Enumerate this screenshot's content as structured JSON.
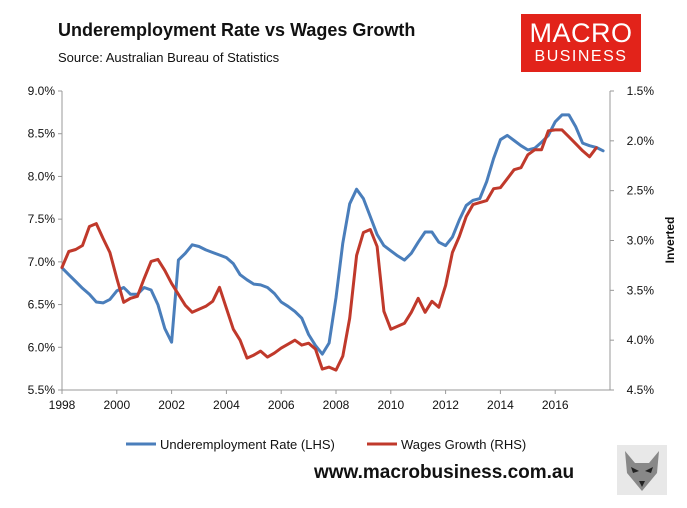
{
  "header": {
    "title": "Underemployment Rate vs Wages Growth",
    "subtitle": "Source: Australian Bureau of Statistics"
  },
  "logo": {
    "line1": "MACRO",
    "line2": "BUSINESS",
    "color": "#e2231a"
  },
  "footer": {
    "url": "www.macrobusiness.com.au"
  },
  "icons": {
    "fox": "fox-head-icon"
  },
  "chart_data": {
    "type": "line",
    "title": "Underemployment Rate vs Wages Growth",
    "subtitle": "Source: Australian Bureau of Statistics",
    "xlabel": "",
    "ylabel_left": "",
    "ylabel_right": "Inverted",
    "xlim": [
      1998,
      2018
    ],
    "x_ticks": [
      "1998",
      "2000",
      "2002",
      "2004",
      "2006",
      "2008",
      "2010",
      "2012",
      "2014",
      "2016"
    ],
    "ylim_left": [
      5.5,
      9.0
    ],
    "y_ticks_left": [
      "5.5%",
      "6.0%",
      "6.5%",
      "7.0%",
      "7.5%",
      "8.0%",
      "8.5%",
      "9.0%"
    ],
    "ylim_right": [
      4.5,
      1.5
    ],
    "right_axis_inverted": true,
    "y_ticks_right": [
      "1.5%",
      "2.0%",
      "2.5%",
      "3.0%",
      "3.5%",
      "4.0%",
      "4.5%"
    ],
    "grid": false,
    "legend_position": "bottom",
    "series": [
      {
        "name": "Underemployment Rate (LHS)",
        "axis": "left",
        "color": "#4a7ebb",
        "points": [
          [
            1998.0,
            6.93
          ],
          [
            1998.25,
            6.85
          ],
          [
            1998.5,
            6.77
          ],
          [
            1998.75,
            6.69
          ],
          [
            1999.0,
            6.62
          ],
          [
            1999.25,
            6.53
          ],
          [
            1999.5,
            6.52
          ],
          [
            1999.75,
            6.56
          ],
          [
            2000.0,
            6.66
          ],
          [
            2000.25,
            6.7
          ],
          [
            2000.5,
            6.62
          ],
          [
            2000.75,
            6.62
          ],
          [
            2001.0,
            6.7
          ],
          [
            2001.25,
            6.67
          ],
          [
            2001.5,
            6.5
          ],
          [
            2001.75,
            6.22
          ],
          [
            2002.0,
            6.06
          ],
          [
            2002.25,
            7.02
          ],
          [
            2002.5,
            7.1
          ],
          [
            2002.75,
            7.2
          ],
          [
            2003.0,
            7.18
          ],
          [
            2003.25,
            7.14
          ],
          [
            2003.5,
            7.11
          ],
          [
            2003.75,
            7.08
          ],
          [
            2004.0,
            7.05
          ],
          [
            2004.25,
            6.98
          ],
          [
            2004.5,
            6.85
          ],
          [
            2004.75,
            6.79
          ],
          [
            2005.0,
            6.74
          ],
          [
            2005.25,
            6.73
          ],
          [
            2005.5,
            6.7
          ],
          [
            2005.75,
            6.63
          ],
          [
            2006.0,
            6.53
          ],
          [
            2006.25,
            6.48
          ],
          [
            2006.5,
            6.42
          ],
          [
            2006.75,
            6.34
          ],
          [
            2007.0,
            6.15
          ],
          [
            2007.25,
            6.02
          ],
          [
            2007.5,
            5.92
          ],
          [
            2007.75,
            6.05
          ],
          [
            2008.0,
            6.58
          ],
          [
            2008.25,
            7.22
          ],
          [
            2008.5,
            7.68
          ],
          [
            2008.75,
            7.85
          ],
          [
            2009.0,
            7.74
          ],
          [
            2009.25,
            7.53
          ],
          [
            2009.5,
            7.32
          ],
          [
            2009.75,
            7.19
          ],
          [
            2010.0,
            7.13
          ],
          [
            2010.25,
            7.07
          ],
          [
            2010.5,
            7.02
          ],
          [
            2010.75,
            7.1
          ],
          [
            2011.0,
            7.23
          ],
          [
            2011.25,
            7.35
          ],
          [
            2011.5,
            7.35
          ],
          [
            2011.75,
            7.23
          ],
          [
            2012.0,
            7.19
          ],
          [
            2012.25,
            7.29
          ],
          [
            2012.5,
            7.49
          ],
          [
            2012.75,
            7.66
          ],
          [
            2013.0,
            7.72
          ],
          [
            2013.25,
            7.74
          ],
          [
            2013.5,
            7.94
          ],
          [
            2013.75,
            8.21
          ],
          [
            2014.0,
            8.43
          ],
          [
            2014.25,
            8.48
          ],
          [
            2014.5,
            8.42
          ],
          [
            2014.75,
            8.36
          ],
          [
            2015.0,
            8.31
          ],
          [
            2015.25,
            8.33
          ],
          [
            2015.5,
            8.4
          ],
          [
            2015.75,
            8.48
          ],
          [
            2016.0,
            8.64
          ],
          [
            2016.25,
            8.72
          ],
          [
            2016.5,
            8.72
          ],
          [
            2016.75,
            8.58
          ],
          [
            2017.0,
            8.39
          ],
          [
            2017.25,
            8.36
          ],
          [
            2017.5,
            8.34
          ],
          [
            2017.75,
            8.3
          ]
        ]
      },
      {
        "name": "Wages Growth (RHS)",
        "axis": "right",
        "color": "#c0392b",
        "points": [
          [
            1998.0,
            3.27
          ],
          [
            1998.25,
            3.11
          ],
          [
            1998.5,
            3.09
          ],
          [
            1998.75,
            3.05
          ],
          [
            1999.0,
            2.86
          ],
          [
            1999.25,
            2.83
          ],
          [
            1999.5,
            2.98
          ],
          [
            1999.75,
            3.12
          ],
          [
            2000.0,
            3.38
          ],
          [
            2000.25,
            3.62
          ],
          [
            2000.5,
            3.58
          ],
          [
            2000.75,
            3.56
          ],
          [
            2001.0,
            3.38
          ],
          [
            2001.25,
            3.21
          ],
          [
            2001.5,
            3.19
          ],
          [
            2001.75,
            3.3
          ],
          [
            2002.0,
            3.43
          ],
          [
            2002.25,
            3.54
          ],
          [
            2002.5,
            3.65
          ],
          [
            2002.75,
            3.72
          ],
          [
            2003.0,
            3.69
          ],
          [
            2003.25,
            3.66
          ],
          [
            2003.5,
            3.61
          ],
          [
            2003.75,
            3.47
          ],
          [
            2004.0,
            3.68
          ],
          [
            2004.25,
            3.89
          ],
          [
            2004.5,
            4.0
          ],
          [
            2004.75,
            4.18
          ],
          [
            2005.0,
            4.15
          ],
          [
            2005.25,
            4.11
          ],
          [
            2005.5,
            4.17
          ],
          [
            2005.75,
            4.13
          ],
          [
            2006.0,
            4.08
          ],
          [
            2006.25,
            4.04
          ],
          [
            2006.5,
            4.0
          ],
          [
            2006.75,
            4.05
          ],
          [
            2007.0,
            4.03
          ],
          [
            2007.25,
            4.09
          ],
          [
            2007.5,
            4.29
          ],
          [
            2007.75,
            4.27
          ],
          [
            2008.0,
            4.3
          ],
          [
            2008.25,
            4.16
          ],
          [
            2008.5,
            3.78
          ],
          [
            2008.75,
            3.15
          ],
          [
            2009.0,
            2.92
          ],
          [
            2009.25,
            2.89
          ],
          [
            2009.5,
            3.06
          ],
          [
            2009.75,
            3.71
          ],
          [
            2010.0,
            3.89
          ],
          [
            2010.25,
            3.86
          ],
          [
            2010.5,
            3.83
          ],
          [
            2010.75,
            3.72
          ],
          [
            2011.0,
            3.58
          ],
          [
            2011.25,
            3.72
          ],
          [
            2011.5,
            3.61
          ],
          [
            2011.75,
            3.67
          ],
          [
            2012.0,
            3.45
          ],
          [
            2012.25,
            3.12
          ],
          [
            2012.5,
            2.96
          ],
          [
            2012.75,
            2.76
          ],
          [
            2013.0,
            2.64
          ],
          [
            2013.25,
            2.62
          ],
          [
            2013.5,
            2.6
          ],
          [
            2013.75,
            2.48
          ],
          [
            2014.0,
            2.47
          ],
          [
            2014.25,
            2.38
          ],
          [
            2014.5,
            2.29
          ],
          [
            2014.75,
            2.27
          ],
          [
            2015.0,
            2.14
          ],
          [
            2015.25,
            2.09
          ],
          [
            2015.5,
            2.09
          ],
          [
            2015.75,
            1.9
          ],
          [
            2016.0,
            1.89
          ],
          [
            2016.25,
            1.89
          ],
          [
            2016.5,
            1.96
          ],
          [
            2016.75,
            2.03
          ],
          [
            2017.0,
            2.1
          ],
          [
            2017.25,
            2.16
          ],
          [
            2017.5,
            2.07
          ]
        ]
      }
    ]
  }
}
